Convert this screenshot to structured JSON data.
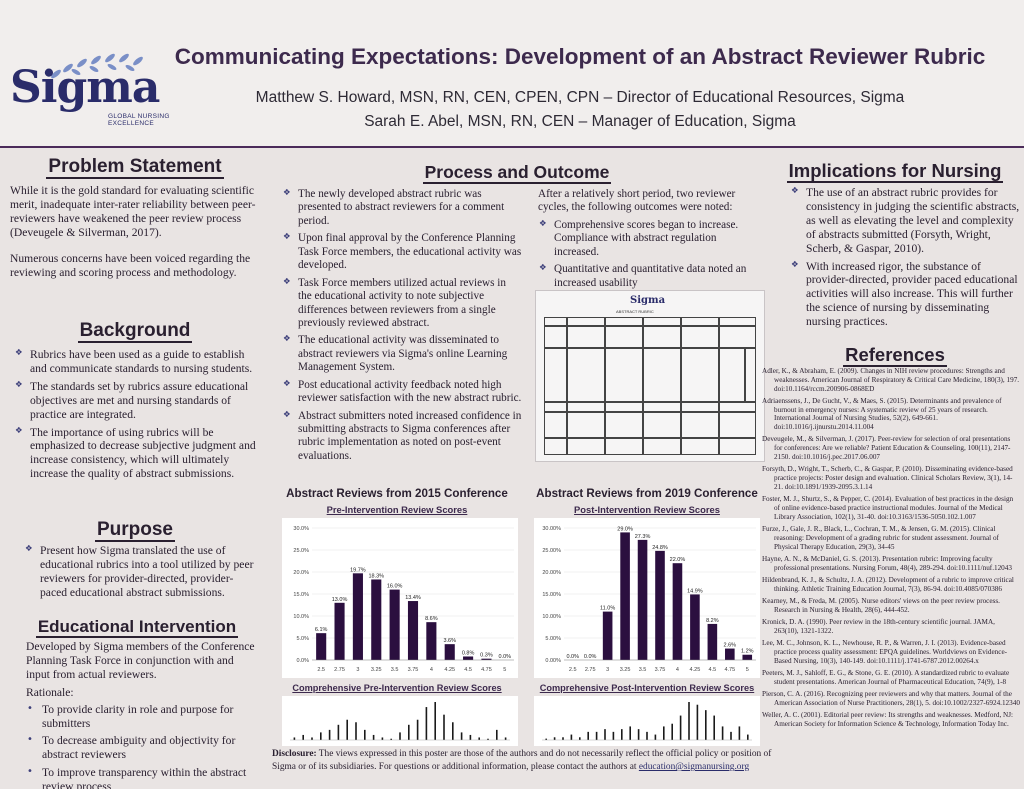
{
  "header": {
    "logo_word": "Sigma",
    "logo_sub": [
      "GLOBAL NURSING",
      "EXCELLENCE"
    ],
    "title": "Communicating Expectations: Development of an Abstract Reviewer Rubric",
    "authors": [
      "Matthew S. Howard, MSN, RN, CEN, CPEN, CPN – Director of Educational Resources, Sigma",
      "Sarah E. Abel, MSN, RN, CEN – Manager of Education, Sigma"
    ]
  },
  "problem": {
    "title": "Problem Statement",
    "paragraphs": [
      "While it is the gold standard for evaluating scientific merit, inadequate inter-rater reliability between peer-reviewers have weakened the peer review process (Deveugele & Silverman, 2017).",
      "Numerous concerns have been voiced regarding the reviewing and scoring process and methodology."
    ]
  },
  "background": {
    "title": "Background",
    "bullets": [
      "Rubrics have been used as a guide to establish and communicate standards to nursing students.",
      "The standards set by rubrics assure educational objectives are met and nursing standards of practice are integrated.",
      "The importance of using rubrics will be emphasized to decrease subjective judgment and increase consistency, which will ultimately increase the quality of abstract submissions."
    ]
  },
  "purpose": {
    "title": "Purpose",
    "bullets": [
      "Present how Sigma translated the use of educational rubrics into a tool utilized by peer reviewers for provider-directed, provider-paced educational abstract submissions."
    ]
  },
  "intervention": {
    "title": "Educational Intervention",
    "text": "Developed by Sigma members of the Conference Planning Task Force in conjunction with and input from actual reviewers.",
    "rationale_label": "Rationale:",
    "bullets": [
      "To provide clarity in role and purpose for submitters",
      "To decrease ambiguity and objectivity for abstract reviewers",
      "To improve transparency within the abstract review process"
    ]
  },
  "process": {
    "title": "Process and Outcome",
    "left_bullets": [
      "The newly developed abstract rubric was presented to abstract reviewers for a comment period.",
      "Upon final approval by the Conference Planning Task Force members, the educational activity was developed.",
      "Task Force members utilized actual reviews in the educational activity to note subjective differences between reviewers from a single previously reviewed abstract.",
      "The educational activity was disseminated to abstract reviewers via Sigma's online Learning Management System.",
      "Post educational activity feedback noted high reviewer satisfaction with the new abstract rubric.",
      "Abstract submitters noted increased confidence in submitting abstracts to Sigma conferences after rubric implementation as noted on post-event evaluations."
    ],
    "right_intro": "After a relatively short period, two reviewer cycles, the following outcomes were noted:",
    "right_bullets": [
      "Comprehensive scores began to increase. Compliance with abstract regulation increased.",
      "Quantitative and quantitative data noted an increased usability"
    ],
    "rubric_logo": "Sigma",
    "rubric_caption": "ABSTRACT RUBRIC"
  },
  "chart_data": [
    {
      "type": "bar",
      "title": "Abstract Reviews from 2015 Conference",
      "subtitle": "Pre-Intervention Review Scores",
      "categories": [
        "2.5",
        "2.75",
        "3",
        "3.25",
        "3.5",
        "3.75",
        "4",
        "4.25",
        "4.5",
        "4.75",
        "5"
      ],
      "values": [
        6.1,
        13.0,
        19.7,
        18.3,
        16.0,
        13.4,
        8.6,
        3.6,
        0.8,
        0.3,
        0.0
      ],
      "value_labels": [
        "6.1%",
        "13.0%",
        "19.7%",
        "18.3%",
        "16.0%",
        "13.4%",
        "8.6%",
        "3.6%",
        "0.8%",
        "0.3%",
        "0.0%"
      ],
      "y_ticks": [
        "0.0%",
        "5.0%",
        "10.0%",
        "15.0%",
        "20.0%",
        "25.0%",
        "30.0%"
      ],
      "ylim": [
        0,
        30
      ],
      "color": "#2b0f3f"
    },
    {
      "type": "bar",
      "title": "Abstract Reviews from 2019 Conference",
      "subtitle": "Post-Intervention Review Scores",
      "categories": [
        "2.5",
        "2.75",
        "3",
        "3.25",
        "3.5",
        "3.75",
        "4",
        "4.25",
        "4.5",
        "4.75",
        "5"
      ],
      "values": [
        0.0,
        0.0,
        11.0,
        29.0,
        27.3,
        24.8,
        22.0,
        14.9,
        8.2,
        2.6,
        1.2
      ],
      "value_labels": [
        "0.0%",
        "0.0%",
        "11.0%",
        "29.0%",
        "27.3%",
        "24.8%",
        "22.0%",
        "14.9%",
        "8.2%",
        "2.6%",
        "1.2%"
      ],
      "y_ticks": [
        "0.00%",
        "5.00%",
        "10.00%",
        "15.00%",
        "20.00%",
        "25.00%",
        "30.00%"
      ],
      "ylim": [
        0,
        30
      ],
      "color": "#2b0f3f"
    }
  ],
  "mini_charts": [
    {
      "title": "Comprehensive Pre-Intervention Review Scores",
      "values": [
        1,
        2,
        1,
        3,
        4,
        6,
        8,
        7,
        4,
        2,
        1,
        0.5,
        3,
        6,
        8,
        13,
        15,
        10,
        7,
        3,
        2,
        1,
        0.5,
        4,
        1
      ]
    },
    {
      "title": "Comprehensive Post-Intervention Review Scores",
      "values": [
        0.5,
        1,
        1,
        2,
        1,
        3,
        3,
        4,
        3,
        4,
        5,
        4,
        3,
        2,
        5,
        6,
        9,
        14,
        13,
        11,
        9,
        5,
        3,
        5,
        2
      ]
    }
  ],
  "implications": {
    "title": "Implications for Nursing",
    "bullets": [
      "The use of an abstract rubric provides for consistency in judging the scientific abstracts, as well as elevating the level and complexity of abstracts submitted (Forsyth, Wright, Scherb, & Gaspar, 2010).",
      "With increased rigor, the substance of provider-directed, provider paced educational activities will also increase. This will further the science of nursing by disseminating nursing practices."
    ]
  },
  "references": {
    "title": "References",
    "items": [
      "Adler, K., & Abraham, E. (2009). Changes in NIH review procedures: Strengths and weaknesses. American Journal of Respiratory & Critical Care Medicine, 180(3), 197. doi:10.1164/rccm.200906-0868ED",
      "Adriaenssens, J., De Gucht, V., & Maes, S. (2015). Determinants and prevalence of burnout in emergency nurses: A systematic review of 25 years of research. International Journal of Nursing Studies, 52(2), 649-661. doi:10.1016/j.ijnurstu.2014.11.004",
      "Deveugele, M., & Silverman, J. (2017). Peer-review for selection of oral presentations for conferences: Are we reliable? Patient Education & Counseling, 100(11), 2147-2150. doi:10.1016/j.pec.2017.06.007",
      "Forsyth, D., Wright, T., Scherb, C., & Gaspar, P. (2010). Disseminating evidence-based practice projects: Poster design and evaluation. Clinical Scholars Review, 3(1), 14-21. doi:10.1891/1939-2095.3.1.14",
      "Foster, M. J., Shurtz, S., & Pepper, C. (2014). Evaluation of best practices in the design of online evidence-based practice instructional modules. Journal of the Medical Library Association, 102(1), 31-40. doi:10.3163/1536-5050.102.1.007",
      "Furze, J., Gale, J. R., Black, L., Cochran, T. M., & Jensen, G. M. (2015). Clinical reasoning: Development of a grading rubric for student assessment. Journal of Physical Therapy Education, 29(3), 34-45",
      "Hayne, A. N., & McDaniel, G. S. (2013). Presentation rubric: Improving faculty professional presentations. Nursing Forum, 48(4), 289-294. doi:10.1111/nuf.12043",
      "Hildenbrand, K. J., & Schultz, J. A. (2012). Development of a rubric to improve critical thinking. Athletic Training Education Journal, 7(3), 86-94. doi:10.4085/070386",
      "Kearney, M., & Freda, M. (2005). Nurse editors' views on the peer review process. Research in Nursing & Health, 28(6), 444-452.",
      "Kronick, D. A. (1990). Peer review in the 18th-century scientific journal. JAMA, 263(10), 1321-1322.",
      "Lee, M. C., Johnson, K. L., Newhouse, R. P., & Warren, J. I. (2013). Evidence-based practice process quality assessment: EPQA guidelines. Worldviews on Evidence-Based Nursing, 10(3), 140-149. doi:10.1111/j.1741-6787.2012.00264.x",
      "Peeters, M. J., Sahloff, E. G., & Stone, G. E. (2010). A standardized rubric to evaluate student presentations. American Journal of Pharmaceutical Education, 74(9), 1-8",
      "Pierson, C. A. (2016). Recognizing peer reviewers and why that matters. Journal of the American Association of Nurse Practitioners, 28(1), 5. doi:10.1002/2327-6924.12340",
      "Weller, A. C. (2001). Editorial peer review: Its strengths and weaknesses. Medford, NJ: American Society for Information Science & Technology, Information Today Inc."
    ]
  },
  "disclosure": {
    "label": "Disclosure:",
    "text": " The views expressed in this poster are those of the authors and do not necessarily reflect the official policy or position of Sigma or of its subsidiaries. For questions or additional information, please contact the authors at ",
    "email": "education@sigmanursing.org"
  }
}
